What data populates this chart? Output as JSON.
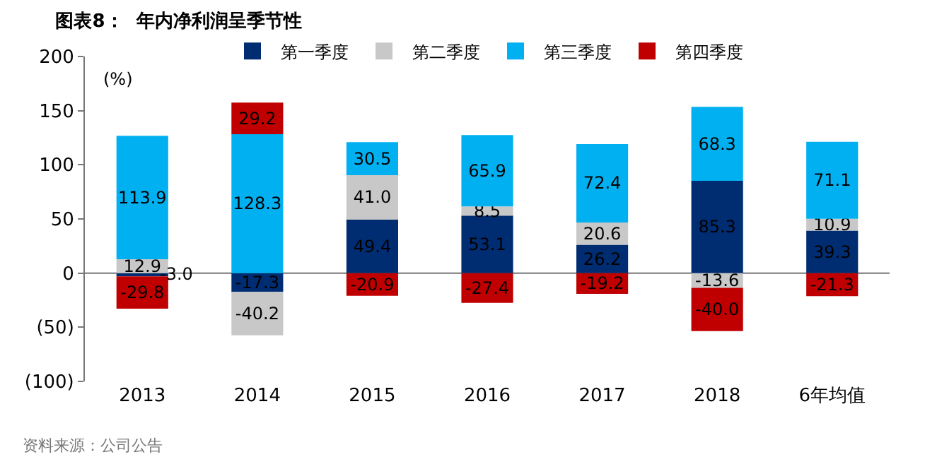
{
  "chart_data": {
    "type": "bar",
    "stacked": true,
    "title": "图表8：  年内净利润呈季节性",
    "ylabel": "(%)",
    "categories": [
      "2013",
      "2014",
      "2015",
      "2016",
      "2017",
      "2018",
      "6年均值"
    ],
    "series": [
      {
        "name": "第一季度",
        "color": "#002d72",
        "values": [
          -3.0,
          -17.3,
          49.4,
          53.1,
          26.2,
          85.3,
          39.3
        ],
        "value_labels": [
          "-3.0",
          "-17.3",
          "49.4",
          "53.1",
          "26.2",
          "85.3",
          "39.3"
        ]
      },
      {
        "name": "第二季度",
        "color": "#c8c8c8",
        "values": [
          12.9,
          -40.2,
          41.0,
          8.5,
          20.6,
          -13.6,
          10.9
        ],
        "value_labels": [
          "12.9",
          "-40.2",
          "41.0",
          "8.5",
          "20.6",
          "-13.6",
          "10.9"
        ]
      },
      {
        "name": "第三季度",
        "color": "#00b0f0",
        "values": [
          113.9,
          128.3,
          30.5,
          65.9,
          72.4,
          68.3,
          71.1
        ],
        "value_labels": [
          "113.9",
          "128.3",
          "30.5",
          "65.9",
          "72.4",
          "68.3",
          "71.1"
        ]
      },
      {
        "name": "第四季度",
        "color": "#c00000",
        "values": [
          -29.8,
          29.2,
          -20.9,
          -27.4,
          -19.2,
          -40.0,
          -21.3
        ],
        "value_labels": [
          "-29.8",
          "29.2",
          "-20.9",
          "-27.4",
          "-19.2",
          "-40.0",
          "-21.3"
        ]
      }
    ],
    "ylim": [
      -100,
      200
    ],
    "yticks": [
      {
        "value": -100,
        "label": "(100)"
      },
      {
        "value": -50,
        "label": "(50)"
      },
      0,
      50,
      100,
      150,
      200
    ],
    "grid": false,
    "legend": "top",
    "ref_lines": [
      {
        "axis": "y",
        "value": 0,
        "color": "#777777"
      }
    ],
    "annotations": [
      "资料来源：公司公告"
    ]
  }
}
